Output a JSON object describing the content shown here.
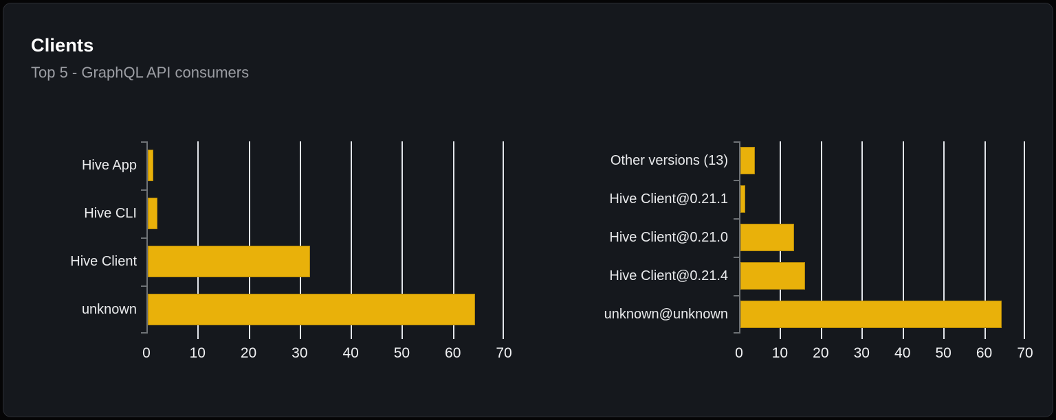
{
  "card": {
    "title": "Clients",
    "subtitle": "Top 5 - GraphQL API consumers"
  },
  "colors": {
    "bar": "#e9b10a",
    "card_background": "#15181d",
    "card_border": "#2b2d33",
    "page_background": "#050506",
    "gridline": "#e2e5ea",
    "axis": "#6e7276",
    "category_label": "#e9eaec",
    "tick_label": "#f0f1f3",
    "title": "#ffffff",
    "subtitle": "#9c9ea4"
  },
  "chart_data": [
    {
      "type": "bar",
      "orientation": "horizontal",
      "name": "clients-by-name",
      "categories": [
        "Hive App",
        "Hive CLI",
        "Hive Client",
        "unknown"
      ],
      "values": [
        1.4,
        2.1,
        32.1,
        64.3
      ],
      "xlim": [
        0,
        70
      ],
      "xticks": [
        0,
        10,
        20,
        30,
        40,
        50,
        60,
        70
      ],
      "grid": true,
      "legend": "none",
      "bar_color": "#e9b10a"
    },
    {
      "type": "bar",
      "orientation": "horizontal",
      "name": "clients-by-version",
      "categories": [
        "Other versions (13)",
        "Hive Client@0.21.1",
        "Hive Client@0.21.0",
        "Hive Client@0.21.4",
        "unknown@unknown"
      ],
      "values": [
        3.8,
        1.5,
        13.4,
        16.2,
        64.3
      ],
      "xlim": [
        0,
        70
      ],
      "xticks": [
        0,
        10,
        20,
        30,
        40,
        50,
        60,
        70
      ],
      "grid": true,
      "legend": "none",
      "bar_color": "#e9b10a"
    }
  ]
}
